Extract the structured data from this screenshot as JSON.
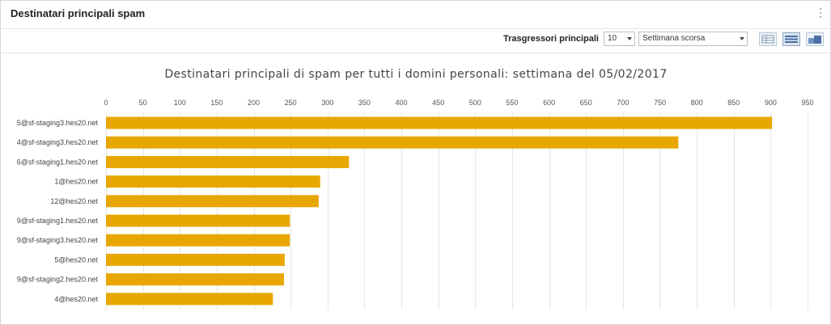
{
  "panel": {
    "title": "Destinatari principali spam"
  },
  "toolbar": {
    "top_offenders_label": "Trasgressori principali",
    "top_count": "10",
    "period": "Settimana scorsa",
    "views": [
      "table-view-icon",
      "chart-view-icon",
      "combined-view-icon"
    ]
  },
  "colors": {
    "bar": "#e8a700",
    "grid": "#e6e6e6"
  },
  "chart_data": {
    "type": "bar",
    "orientation": "horizontal",
    "title": "Destinatari principali di spam per tutti i domini personali: settimana del 05/02/2017",
    "categories": [
      "5@sf-staging3.hes20.net",
      "4@sf-staging3.hes20.net",
      "6@sf-staging1.hes20.net",
      "1@hes20.net",
      "12@hes20.net",
      "9@sf-staging1.hes20.net",
      "9@sf-staging3.hes20.net",
      "5@hes20.net",
      "9@sf-staging2.hes20.net",
      "4@hes20.net"
    ],
    "values": [
      902,
      775,
      329,
      290,
      288,
      249,
      249,
      242,
      241,
      226
    ],
    "xticks": [
      "0",
      "50",
      "100",
      "150",
      "200",
      "250",
      "300",
      "350",
      "400",
      "450",
      "500",
      "550",
      "600",
      "650",
      "700",
      "750",
      "800",
      "850",
      "900",
      "950"
    ],
    "xlim": [
      0,
      950
    ],
    "xlabel": "",
    "ylabel": "",
    "axis_position": "top",
    "grid": true
  }
}
